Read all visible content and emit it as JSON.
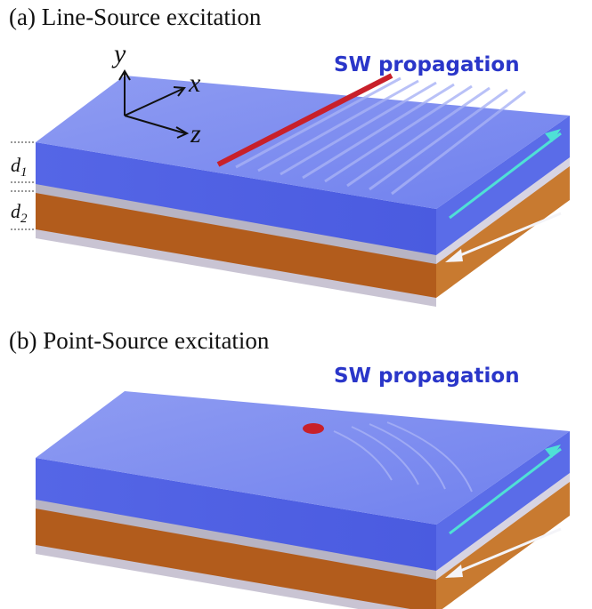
{
  "panels": [
    {
      "label": "(a) Line-Source excitation",
      "annotation": "SW propagation"
    },
    {
      "label": "(b) Point-Source excitation",
      "annotation": "SW propagation"
    }
  ],
  "axes": [
    "y",
    "x",
    "z"
  ],
  "dimensions": [
    {
      "symbol": "d",
      "subscript": "1"
    },
    {
      "symbol": "d",
      "subscript": "2"
    }
  ]
}
